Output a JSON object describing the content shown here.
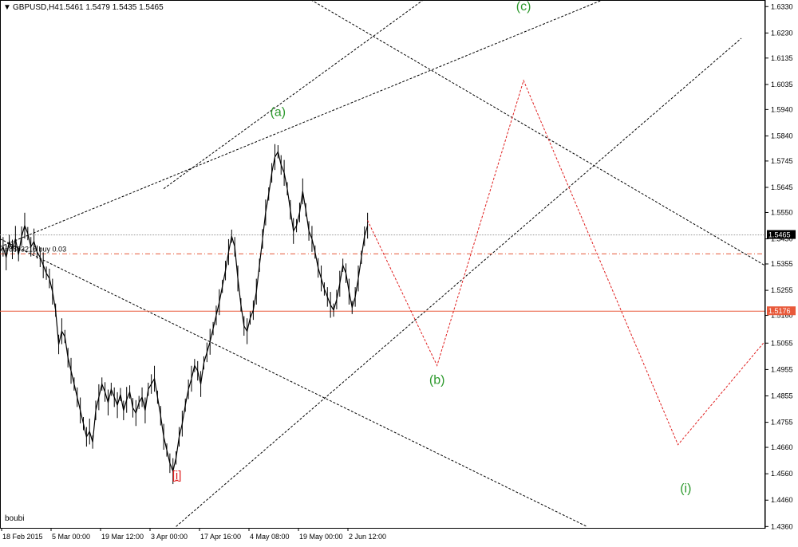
{
  "header": {
    "symbol": "GBPUSD,H4",
    "ohlc": "1.5461 1.5479 1.5435 1.5465",
    "arrow": "▼"
  },
  "order_line": {
    "label": "#8893216 buy 0.03",
    "price": 1.5393,
    "color": "#e8593a"
  },
  "current_price": {
    "label": "1.5465",
    "value": 1.5465
  },
  "support_line": {
    "label": "1.5176",
    "value": 1.5176,
    "color": "#e8593a"
  },
  "footer_label": "boubi",
  "colors": {
    "candles": "#000000",
    "wave_label": "#2e9a2e",
    "point_label": "#e02020",
    "forecast": "#e02020",
    "channel": "#000000"
  },
  "chart_data": {
    "type": "line",
    "title": "GBPUSD,H4",
    "ylim": [
      1.4355,
      1.6355
    ],
    "y_ticks": [
      "1.6330",
      "1.6230",
      "1.6135",
      "1.6035",
      "1.5940",
      "1.5840",
      "1.5745",
      "1.5645",
      "1.5550",
      "1.5450",
      "1.5355",
      "1.5255",
      "1.5160",
      "1.5055",
      "1.4955",
      "1.4855",
      "1.4755",
      "1.4660",
      "1.4560",
      "1.4460",
      "1.4360"
    ],
    "x_ticks": [
      "18 Feb 2015",
      "5 Mar 00:00",
      "19 Mar 12:00",
      "3 Apr 00:00",
      "17 Apr 16:00",
      "4 May 08:00",
      "19 May 00:00",
      "2 Jun 12:00"
    ],
    "x_range_bars": [
      0,
      990
    ],
    "price_series": {
      "name": "GBPUSD H4",
      "x": [
        0,
        4,
        8,
        12,
        16,
        20,
        24,
        28,
        32,
        36,
        40,
        44,
        48,
        52,
        56,
        60,
        64,
        68,
        72,
        76,
        80,
        84,
        88,
        92,
        96,
        100,
        104,
        108,
        112,
        116,
        120,
        124,
        128,
        132,
        136,
        140,
        144,
        148,
        152,
        156,
        160,
        164,
        168,
        172,
        176,
        180,
        184,
        188,
        192,
        196,
        200,
        204,
        208,
        212,
        216,
        220,
        224,
        228,
        232,
        236,
        240,
        244,
        248,
        252,
        256,
        260,
        264,
        268,
        272,
        276,
        280,
        284,
        288,
        292,
        296,
        300,
        304,
        308,
        312,
        316,
        320,
        324,
        328,
        332,
        336,
        340,
        344,
        348,
        352,
        356,
        360,
        364,
        368,
        372,
        376,
        380,
        384,
        388,
        392,
        396,
        400,
        404,
        408,
        412,
        416,
        420,
        424,
        428,
        432,
        436,
        440,
        444,
        448,
        452,
        456,
        460,
        464,
        468,
        472,
        476
      ],
      "y": [
        1.54,
        1.542,
        1.538,
        1.544,
        1.541,
        1.545,
        1.539,
        1.546,
        1.55,
        1.547,
        1.542,
        1.544,
        1.54,
        1.538,
        1.535,
        1.532,
        1.53,
        1.525,
        1.518,
        1.505,
        1.51,
        1.508,
        1.5,
        1.495,
        1.49,
        1.485,
        1.48,
        1.475,
        1.47,
        1.472,
        1.468,
        1.48,
        1.485,
        1.49,
        1.487,
        1.483,
        1.488,
        1.485,
        1.482,
        1.486,
        1.48,
        1.484,
        1.487,
        1.481,
        1.479,
        1.483,
        1.485,
        1.48,
        1.488,
        1.49,
        1.492,
        1.485,
        1.478,
        1.47,
        1.465,
        1.46,
        1.457,
        1.462,
        1.47,
        1.475,
        1.482,
        1.488,
        1.492,
        1.497,
        1.495,
        1.49,
        1.498,
        1.502,
        1.506,
        1.511,
        1.516,
        1.521,
        1.527,
        1.533,
        1.54,
        1.546,
        1.542,
        1.53,
        1.52,
        1.512,
        1.51,
        1.515,
        1.518,
        1.525,
        1.535,
        1.545,
        1.555,
        1.562,
        1.57,
        1.576,
        1.578,
        1.573,
        1.57,
        1.564,
        1.556,
        1.548,
        1.55,
        1.555,
        1.563,
        1.556,
        1.548,
        1.545,
        1.54,
        1.534,
        1.53,
        1.526,
        1.523,
        1.52,
        1.518,
        1.522,
        1.528,
        1.535,
        1.532,
        1.525,
        1.519,
        1.523,
        1.53,
        1.538,
        1.546,
        1.55
      ]
    },
    "forecast_path": {
      "name": "forecast",
      "x": [
        476,
        566,
        678,
        878,
        990
      ],
      "y": [
        1.552,
        1.497,
        1.605,
        1.467,
        1.506
      ]
    },
    "channel_lines": [
      {
        "x": [
          0,
          760
        ],
        "y": [
          1.545,
          1.436
        ]
      },
      {
        "x": [
          260,
          990
        ],
        "y": [
          1.66,
          1.535
        ]
      },
      {
        "x": [
          212,
          548
        ],
        "y": [
          1.564,
          1.6355
        ]
      },
      {
        "x": [
          0,
          780
        ],
        "y": [
          1.542,
          1.6355
        ]
      },
      {
        "x": [
          228,
          960
        ],
        "y": [
          1.436,
          1.621
        ]
      }
    ],
    "annotations": [
      {
        "text": "(a)",
        "x": 360,
        "y": 1.5915,
        "kind": "wave"
      },
      {
        "text": "(c)",
        "x": 678,
        "y": 1.6315,
        "kind": "wave"
      },
      {
        "text": "(b)",
        "x": 566,
        "y": 1.49,
        "kind": "wave"
      },
      {
        "text": "(i)",
        "x": 888,
        "y": 1.449,
        "kind": "wave"
      },
      {
        "text": "[i]",
        "x": 229,
        "y": 1.454,
        "kind": "point"
      }
    ]
  }
}
